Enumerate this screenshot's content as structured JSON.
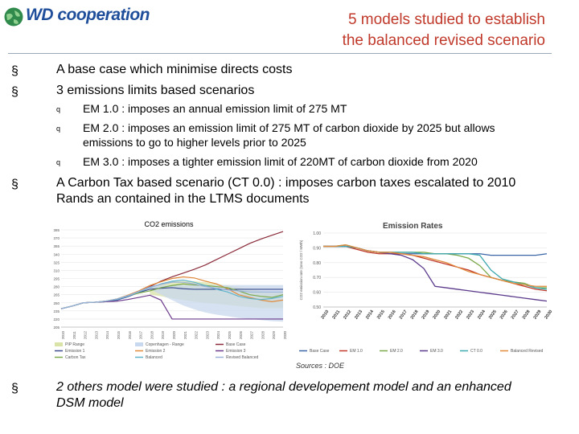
{
  "logo": {
    "text": "WD cooperation",
    "icon": "globe-icon"
  },
  "title_lines": [
    "5 models studied to establish",
    "the balanced revised scenario"
  ],
  "bullets": [
    "A base case which minimise directs costs",
    "3 emissions limits based scenarios",
    "A Carbon Tax based scenario (CT 0.0) : imposes carbon taxes escalated to 2010 Rands an contained in the LTMS documents",
    "2 others model were studied : a regional developement model and an enhanced DSM model"
  ],
  "sub_bullets": [
    "EM 1.0 : imposes an annual emission limit of 275 MT",
    "EM 2.0 : imposes an emission limit of 275 MT of carbon dioxide by 2025 but allows emissions to go to higher levels prior to 2025",
    "EM 3.0 : imposes a tighter emission limit of 220MT of carbon  dioxide from 2020"
  ],
  "bullet_marker": "§",
  "sub_marker": "q",
  "source": "Sources : DOE",
  "colors": {
    "title": "#c0392b",
    "logo": "#1f4e9a"
  },
  "chart_data": [
    {
      "type": "area",
      "title": "CO2 emissions",
      "x": [
        "2010",
        "2011",
        "2012",
        "2013",
        "2014",
        "2015",
        "2016",
        "2017",
        "2018",
        "2019",
        "2020",
        "2021",
        "2022",
        "2023",
        "2024",
        "2025",
        "2026",
        "2027",
        "2028",
        "2029",
        "2030"
      ],
      "ylim": [
        205,
        385
      ],
      "yticks": [
        205,
        220,
        235,
        250,
        265,
        280,
        295,
        310,
        325,
        340,
        355,
        370,
        385
      ],
      "bands": [
        {
          "name": "PIP Range",
          "color": "#d9e3a8",
          "upper": [
            null,
            null,
            null,
            null,
            null,
            null,
            null,
            null,
            280,
            285,
            290,
            290,
            290,
            288,
            285,
            282,
            278,
            275,
            272,
            270,
            270
          ],
          "lower": [
            null,
            null,
            null,
            null,
            null,
            null,
            null,
            null,
            265,
            262,
            258,
            255,
            252,
            250,
            248,
            246,
            244,
            242,
            240,
            240,
            240
          ]
        },
        {
          "name": "Copenhagen - Range",
          "color": "#c8d8ee",
          "upper": [
            null,
            null,
            null,
            null,
            null,
            null,
            null,
            null,
            280,
            282,
            283,
            283,
            283,
            283,
            283,
            283,
            283,
            283,
            283,
            283,
            283
          ],
          "lower": [
            null,
            null,
            null,
            null,
            null,
            null,
            null,
            null,
            275,
            265,
            255,
            245,
            238,
            232,
            228,
            225,
            222,
            220,
            218,
            216,
            215
          ]
        }
      ],
      "series": [
        {
          "name": "Base Case",
          "color": "#8b2b3a",
          "values": [
            239,
            244,
            250,
            251,
            253,
            256,
            263,
            270,
            280,
            290,
            298,
            305,
            312,
            320,
            330,
            340,
            350,
            360,
            368,
            375,
            382
          ]
        },
        {
          "name": "Emission 1",
          "color": "#3a4a8c",
          "values": [
            239,
            244,
            250,
            251,
            252,
            255,
            261,
            269,
            275,
            277,
            278,
            276,
            275,
            275,
            275,
            275,
            275,
            275,
            275,
            275,
            275
          ]
        },
        {
          "name": "Emission 2",
          "color": "#e08a3c",
          "values": [
            239,
            244,
            250,
            251,
            253,
            257,
            264,
            272,
            282,
            289,
            295,
            298,
            296,
            290,
            285,
            276,
            265,
            260,
            255,
            252,
            255
          ]
        },
        {
          "name": "Emission 3",
          "color": "#6b3a8c",
          "values": [
            239,
            244,
            250,
            251,
            252,
            253,
            256,
            260,
            264,
            255,
            220,
            220,
            220,
            220,
            220,
            220,
            220,
            220,
            220,
            220,
            220
          ]
        },
        {
          "name": "Carbon Tax",
          "color": "#7aa84a",
          "values": [
            239,
            244,
            250,
            251,
            253,
            257,
            263,
            268,
            272,
            278,
            282,
            285,
            283,
            282,
            280,
            278,
            272,
            265,
            262,
            260,
            265
          ]
        },
        {
          "name": "Balanced",
          "color": "#5fb3c9",
          "values": [
            239,
            244,
            250,
            251,
            253,
            256,
            262,
            270,
            278,
            285,
            290,
            292,
            288,
            282,
            275,
            270,
            262,
            258,
            256,
            258,
            262
          ]
        },
        {
          "name": "Revised Balanced",
          "color": "#9ab0d8",
          "values": [
            239,
            244,
            250,
            251,
            253,
            257,
            263,
            271,
            279,
            284,
            288,
            288,
            285,
            280,
            277,
            274,
            272,
            270,
            270,
            270,
            270
          ]
        }
      ]
    },
    {
      "type": "line",
      "title": "Emission Rates",
      "ylabel": "CO2 emission rate (tons CO2 / MWh)",
      "x": [
        "2010",
        "2011",
        "2012",
        "2013",
        "2014",
        "2015",
        "2016",
        "2017",
        "2018",
        "2019",
        "2020",
        "2021",
        "2022",
        "2023",
        "2024",
        "2025",
        "2026",
        "2027",
        "2028",
        "2029",
        "2030"
      ],
      "ylim": [
        0.5,
        1.0
      ],
      "yticks": [
        "0.50",
        "0.60",
        "0.70",
        "0.80",
        "0.90",
        "1.00"
      ],
      "series": [
        {
          "name": "Base Case",
          "color": "#3a66a8",
          "values": [
            0.91,
            0.91,
            0.91,
            0.9,
            0.88,
            0.87,
            0.86,
            0.86,
            0.86,
            0.86,
            0.86,
            0.86,
            0.86,
            0.86,
            0.86,
            0.85,
            0.85,
            0.85,
            0.85,
            0.85,
            0.86
          ]
        },
        {
          "name": "EM 1.0",
          "color": "#c0392b",
          "values": [
            0.91,
            0.91,
            0.91,
            0.89,
            0.87,
            0.86,
            0.86,
            0.86,
            0.85,
            0.83,
            0.81,
            0.79,
            0.77,
            0.75,
            0.72,
            0.7,
            0.68,
            0.66,
            0.64,
            0.62,
            0.61
          ]
        },
        {
          "name": "EM 2.0",
          "color": "#7aa84a",
          "values": [
            0.91,
            0.91,
            0.92,
            0.9,
            0.88,
            0.87,
            0.87,
            0.87,
            0.87,
            0.87,
            0.86,
            0.86,
            0.85,
            0.83,
            0.78,
            0.7,
            0.68,
            0.67,
            0.66,
            0.63,
            0.63
          ]
        },
        {
          "name": "EM 3.0",
          "color": "#5b3a8c",
          "values": [
            0.91,
            0.91,
            0.91,
            0.9,
            0.88,
            0.87,
            0.86,
            0.85,
            0.82,
            0.76,
            0.64,
            0.63,
            0.62,
            0.61,
            0.6,
            0.59,
            0.58,
            0.57,
            0.56,
            0.55,
            0.54
          ]
        },
        {
          "name": "CT 0.0",
          "color": "#3fa9b0",
          "values": [
            0.91,
            0.91,
            0.91,
            0.9,
            0.88,
            0.87,
            0.87,
            0.87,
            0.87,
            0.86,
            0.86,
            0.86,
            0.86,
            0.86,
            0.85,
            0.75,
            0.69,
            0.67,
            0.65,
            0.63,
            0.62
          ]
        },
        {
          "name": "Balanced Revised",
          "color": "#e08a3c",
          "values": [
            0.91,
            0.91,
            0.92,
            0.9,
            0.88,
            0.87,
            0.87,
            0.86,
            0.85,
            0.84,
            0.82,
            0.8,
            0.77,
            0.74,
            0.72,
            0.7,
            0.68,
            0.66,
            0.65,
            0.64,
            0.64
          ]
        }
      ]
    }
  ]
}
